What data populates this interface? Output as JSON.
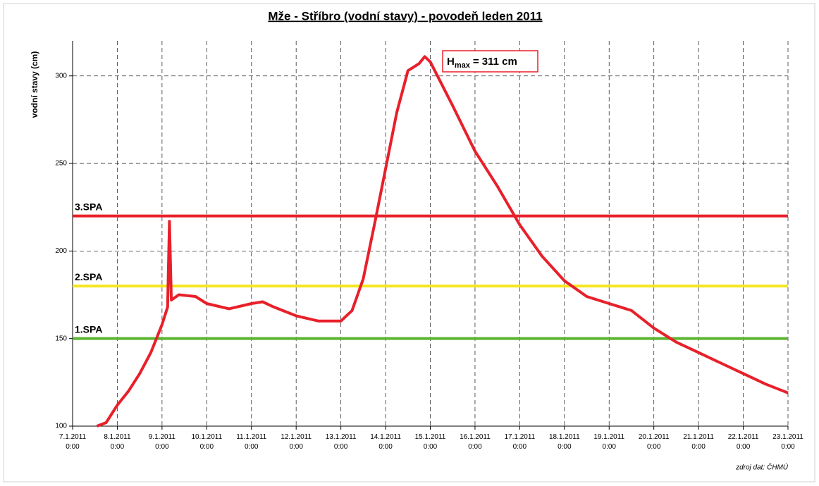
{
  "chart_data": {
    "type": "line",
    "title": "Mže - Stříbro (vodní stavy) - povodeň leden 2011",
    "y_label": "vodní stavy (cm)",
    "source": "zdroj dat: ČHMÚ",
    "annotation": {
      "text": "H",
      "subscript": "max",
      "suffix": "= 311 cm",
      "color": "#e8202a"
    },
    "color": "#e8202a",
    "grid": true,
    "x": [
      "7.1.2011 13:00",
      "7.1.2011 18:00",
      "8.1.2011 0:00",
      "8.1.2011 6:00",
      "8.1.2011 12:00",
      "8.1.2011 18:00",
      "9.1.2011 0:00",
      "9.1.2011 3:00",
      "9.1.2011 4:00",
      "9.1.2011 5:00",
      "9.1.2011 9:00",
      "9.1.2011 18:00",
      "10.1.2011 0:00",
      "10.1.2011 12:00",
      "11.1.2011 0:00",
      "11.1.2011 6:00",
      "11.1.2011 12:00",
      "12.1.2011 0:00",
      "12.1.2011 12:00",
      "13.1.2011 0:00",
      "13.1.2011 6:00",
      "13.1.2011 12:00",
      "13.1.2011 18:00",
      "14.1.2011 0:00",
      "14.1.2011 6:00",
      "14.1.2011 12:00",
      "14.1.2011 18:00",
      "14.1.2011 21:00",
      "15.1.2011 0:00",
      "15.1.2011 12:00",
      "16.1.2011 0:00",
      "16.1.2011 12:00",
      "17.1.2011 0:00",
      "17.1.2011 12:00",
      "18.1.2011 0:00",
      "18.1.2011 12:00",
      "19.1.2011 0:00",
      "19.1.2011 12:00",
      "20.1.2011 0:00",
      "20.1.2011 12:00",
      "21.1.2011 0:00",
      "21.1.2011 12:00",
      "22.1.2011 0:00",
      "22.1.2011 12:00",
      "23.1.2011 0:00"
    ],
    "values": [
      100,
      102,
      112,
      120,
      130,
      142,
      158,
      168,
      217,
      172,
      175,
      174,
      170,
      167,
      170,
      171,
      168,
      163,
      160,
      160,
      166,
      184,
      215,
      247,
      279,
      303,
      307,
      311,
      308,
      283,
      257,
      237,
      215,
      197,
      183,
      174,
      170,
      166,
      156,
      148,
      142,
      136,
      130,
      124,
      119
    ],
    "thresholds": [
      {
        "label": "3.SPA",
        "value": 220,
        "color": "#e8202a"
      },
      {
        "label": "2.SPA",
        "value": 180,
        "color": "#f5e61e"
      },
      {
        "label": "1.SPA",
        "value": 150,
        "color": "#5cb531"
      }
    ],
    "xlim": [
      "7.1.2011 0:00",
      "23.1.2011 0:00"
    ],
    "xticks": [
      "7.1.2011 0:00",
      "8.1.2011 0:00",
      "9.1.2011 0:00",
      "10.1.2011 0:00",
      "11.1.2011 0:00",
      "12.1.2011 0:00",
      "13.1.2011 0:00",
      "14.1.2011 0:00",
      "15.1.2011 0:00",
      "16.1.2011 0:00",
      "17.1.2011 0:00",
      "18.1.2011 0:00",
      "19.1.2011 0:00",
      "20.1.2011 0:00",
      "21.1.2011 0:00",
      "22.1.2011 0:00",
      "23.1.2011 0:00"
    ],
    "ylim": [
      100,
      320
    ],
    "yticks": [
      100,
      150,
      200,
      250,
      300
    ]
  }
}
